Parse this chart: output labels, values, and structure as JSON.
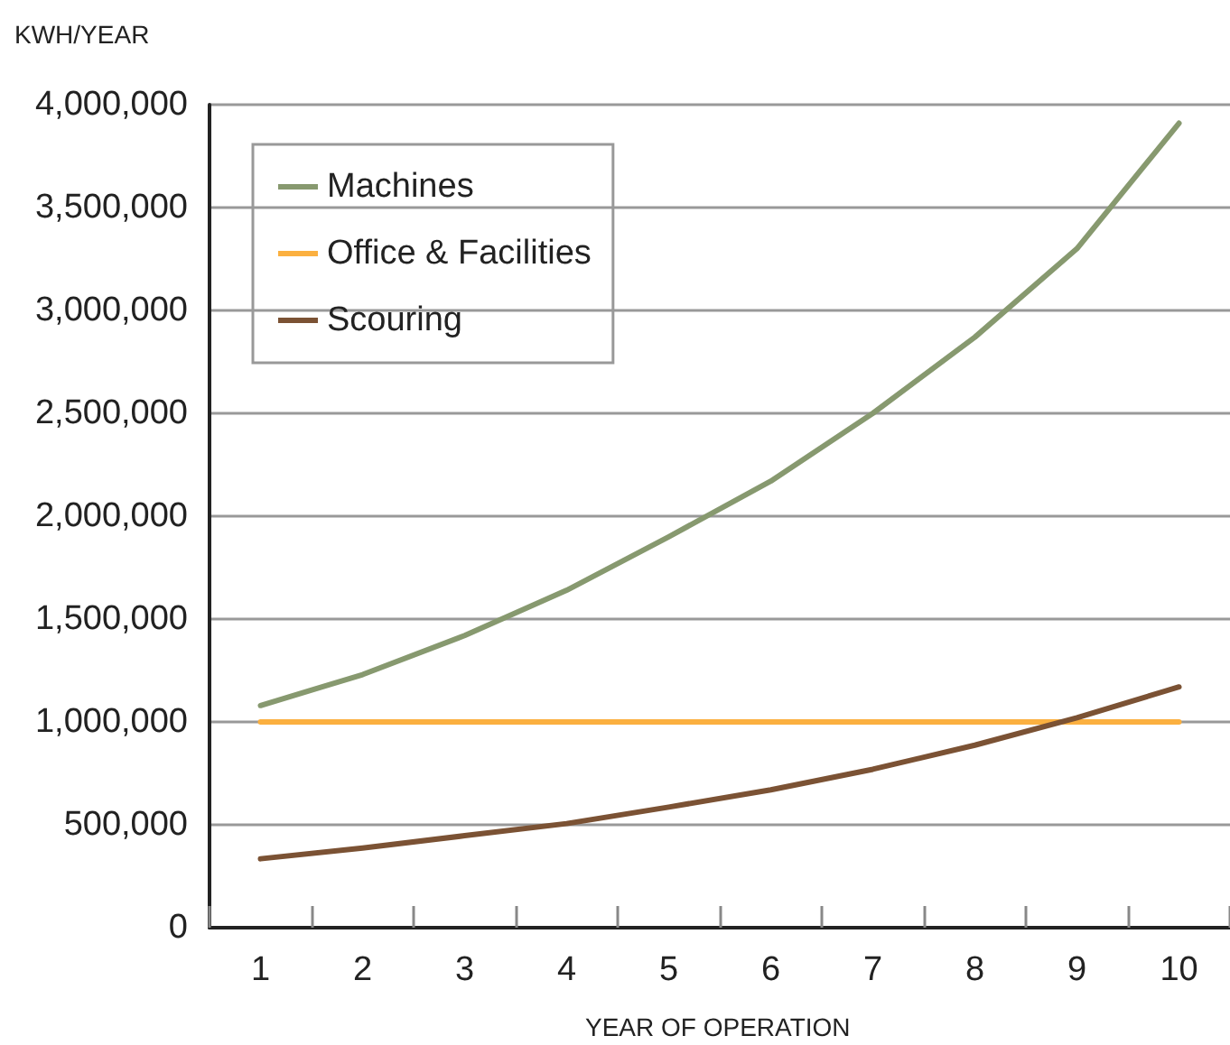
{
  "chart_data": {
    "type": "line",
    "ylabel": "KWH/YEAR",
    "xlabel": "YEAR OF OPERATION",
    "categories": [
      "1",
      "2",
      "3",
      "4",
      "5",
      "6",
      "7",
      "8",
      "9",
      "10"
    ],
    "series": [
      {
        "name": "Machines",
        "color": "#87996f",
        "values": [
          1080000,
          1230000,
          1420000,
          1640000,
          1900000,
          2170000,
          2500000,
          2870000,
          3300000,
          3910000
        ]
      },
      {
        "name": "Office & Facilities",
        "color": "#fbb040",
        "values": [
          1000000,
          1000000,
          1000000,
          1000000,
          1000000,
          1000000,
          1000000,
          1000000,
          1000000,
          1000000
        ]
      },
      {
        "name": "Scouring",
        "color": "#7b5234",
        "values": [
          335000,
          387000,
          447000,
          506000,
          586000,
          670000,
          770000,
          887000,
          1020000,
          1170000
        ]
      }
    ],
    "ylim": [
      0,
      4000000
    ],
    "yticks": [
      {
        "value": 0,
        "label": "0"
      },
      {
        "value": 500000,
        "label": "500,000"
      },
      {
        "value": 1000000,
        "label": "1,000,000"
      },
      {
        "value": 1500000,
        "label": "1,500,000"
      },
      {
        "value": 2000000,
        "label": "2,000,000"
      },
      {
        "value": 2500000,
        "label": "2,500,000"
      },
      {
        "value": 3000000,
        "label": "3,000,000"
      },
      {
        "value": 3500000,
        "label": "3,500,000"
      },
      {
        "value": 4000000,
        "label": "4,000,000"
      }
    ],
    "grid": "y",
    "legend": "top left",
    "marker": "none",
    "line_style": "solid"
  }
}
